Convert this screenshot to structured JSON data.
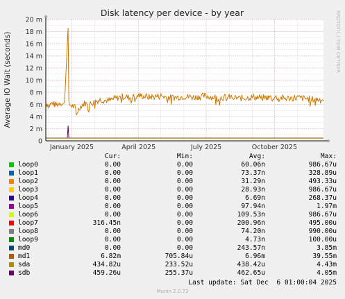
{
  "chart_data": {
    "type": "line",
    "title": "Disk latency per device - by year",
    "ylabel": "Average IO Wait (seconds)",
    "watermark": "RRDTOOL / TOBI OETIKER",
    "ylim": [
      0,
      0.02
    ],
    "y_ticks": [
      {
        "value": 0,
        "label": "0"
      },
      {
        "value": 0.002,
        "label": "2 m"
      },
      {
        "value": 0.004,
        "label": "4 m"
      },
      {
        "value": 0.006,
        "label": "6 m"
      },
      {
        "value": 0.008,
        "label": "8 m"
      },
      {
        "value": 0.01,
        "label": "10 m"
      },
      {
        "value": 0.012,
        "label": "12 m"
      },
      {
        "value": 0.014,
        "label": "14 m"
      },
      {
        "value": 0.016,
        "label": "16 m"
      },
      {
        "value": 0.018,
        "label": "18 m"
      },
      {
        "value": 0.02,
        "label": "20 m"
      }
    ],
    "x_range": [
      "2024-11-27",
      "2025-12-06"
    ],
    "x_ticks": [
      {
        "date": "2025-01-01",
        "label": "January 2025"
      },
      {
        "date": "2025-04-01",
        "label": "April 2025"
      },
      {
        "date": "2025-07-01",
        "label": "July 2025"
      },
      {
        "date": "2025-10-01",
        "label": "October 2025"
      }
    ],
    "grid": true,
    "series": [
      {
        "name": "md1",
        "color": "#cc7700",
        "style": "noisy",
        "points": [
          [
            "2024-11-27",
            0.0063
          ],
          [
            "2024-12-01",
            0.0058
          ],
          [
            "2024-12-06",
            0.0062
          ],
          [
            "2024-12-10",
            0.0059
          ],
          [
            "2024-12-14",
            0.0061
          ],
          [
            "2024-12-18",
            0.0063
          ],
          [
            "2024-12-22",
            0.006
          ],
          [
            "2024-12-27",
            0.0186
          ],
          [
            "2024-12-28",
            0.006
          ],
          [
            "2025-01-01",
            0.0058
          ],
          [
            "2025-01-05",
            0.0055
          ],
          [
            "2025-01-08",
            0.0047
          ],
          [
            "2025-01-12",
            0.0056
          ],
          [
            "2025-01-18",
            0.0062
          ],
          [
            "2025-01-25",
            0.006
          ],
          [
            "2025-02-01",
            0.0065
          ],
          [
            "2025-02-10",
            0.0068
          ],
          [
            "2025-02-20",
            0.0066
          ],
          [
            "2025-03-01",
            0.007
          ],
          [
            "2025-03-10",
            0.0073
          ],
          [
            "2025-03-20",
            0.0071
          ],
          [
            "2025-04-01",
            0.0075
          ],
          [
            "2025-04-15",
            0.0072
          ],
          [
            "2025-05-01",
            0.0074
          ],
          [
            "2025-05-15",
            0.0071
          ],
          [
            "2025-06-01",
            0.0073
          ],
          [
            "2025-06-15",
            0.0072
          ],
          [
            "2025-07-01",
            0.0074
          ],
          [
            "2025-07-15",
            0.0071
          ],
          [
            "2025-08-01",
            0.0072
          ],
          [
            "2025-08-15",
            0.007
          ],
          [
            "2025-09-01",
            0.0072
          ],
          [
            "2025-09-15",
            0.0071
          ],
          [
            "2025-10-01",
            0.0072
          ],
          [
            "2025-10-15",
            0.007
          ],
          [
            "2025-11-01",
            0.0071
          ],
          [
            "2025-11-15",
            0.0069
          ],
          [
            "2025-12-01",
            0.0068
          ],
          [
            "2025-12-06",
            0.0068
          ]
        ]
      },
      {
        "name": "sdb",
        "color": "#660066",
        "style": "flat",
        "points": [
          [
            "2024-11-27",
            0.00046
          ],
          [
            "2024-12-26",
            0.00046
          ],
          [
            "2024-12-27",
            0.0025
          ],
          [
            "2024-12-28",
            0.00046
          ],
          [
            "2025-12-06",
            0.00046
          ]
        ]
      },
      {
        "name": "sda",
        "color": "#aa8800",
        "style": "flat",
        "points": [
          [
            "2024-11-27",
            0.00043
          ],
          [
            "2025-12-06",
            0.00043
          ]
        ]
      }
    ]
  },
  "legend": {
    "headers": {
      "cur": "Cur:",
      "min": "Min:",
      "avg": "Avg:",
      "max": "Max:"
    },
    "rows": [
      {
        "name": "loop0",
        "color": "#00cc00",
        "cur": "0.00",
        "min": "0.00",
        "avg": "60.06n",
        "max": "986.67u"
      },
      {
        "name": "loop1",
        "color": "#0066b3",
        "cur": "0.00",
        "min": "0.00",
        "avg": "73.37n",
        "max": "328.89u"
      },
      {
        "name": "loop2",
        "color": "#ff8000",
        "cur": "0.00",
        "min": "0.00",
        "avg": "31.29n",
        "max": "493.33u"
      },
      {
        "name": "loop3",
        "color": "#ffcc00",
        "cur": "0.00",
        "min": "0.00",
        "avg": "28.93n",
        "max": "986.67u"
      },
      {
        "name": "loop4",
        "color": "#330099",
        "cur": "0.00",
        "min": "0.00",
        "avg": "6.69n",
        "max": "268.37u"
      },
      {
        "name": "loop5",
        "color": "#990099",
        "cur": "0.00",
        "min": "0.00",
        "avg": "97.94n",
        "max": "1.97m"
      },
      {
        "name": "loop6",
        "color": "#ccff00",
        "cur": "0.00",
        "min": "0.00",
        "avg": "109.53n",
        "max": "986.67u"
      },
      {
        "name": "loop7",
        "color": "#ff0000",
        "cur": "316.45n",
        "min": "0.00",
        "avg": "200.96n",
        "max": "495.00u"
      },
      {
        "name": "loop8",
        "color": "#808080",
        "cur": "0.00",
        "min": "0.00",
        "avg": "74.20n",
        "max": "990.00u"
      },
      {
        "name": "loop9",
        "color": "#008f00",
        "cur": "0.00",
        "min": "0.00",
        "avg": "4.73n",
        "max": "100.00u"
      },
      {
        "name": "md0",
        "color": "#00487d",
        "cur": "0.00",
        "min": "0.00",
        "avg": "243.57n",
        "max": "3.85m"
      },
      {
        "name": "md1",
        "color": "#b35a00",
        "cur": "6.82m",
        "min": "705.84u",
        "avg": "6.96m",
        "max": "39.55m"
      },
      {
        "name": "sda",
        "color": "#b38f00",
        "cur": "434.82u",
        "min": "233.52u",
        "avg": "438.42u",
        "max": "4.43m"
      },
      {
        "name": "sdb",
        "color": "#6b006b",
        "cur": "459.26u",
        "min": "255.37u",
        "avg": "462.65u",
        "max": "4.05m"
      }
    ]
  },
  "footer": {
    "last_update": "Last update: Sat Dec  6 01:00:04 2025",
    "munin": "Munin 2.0.73"
  }
}
